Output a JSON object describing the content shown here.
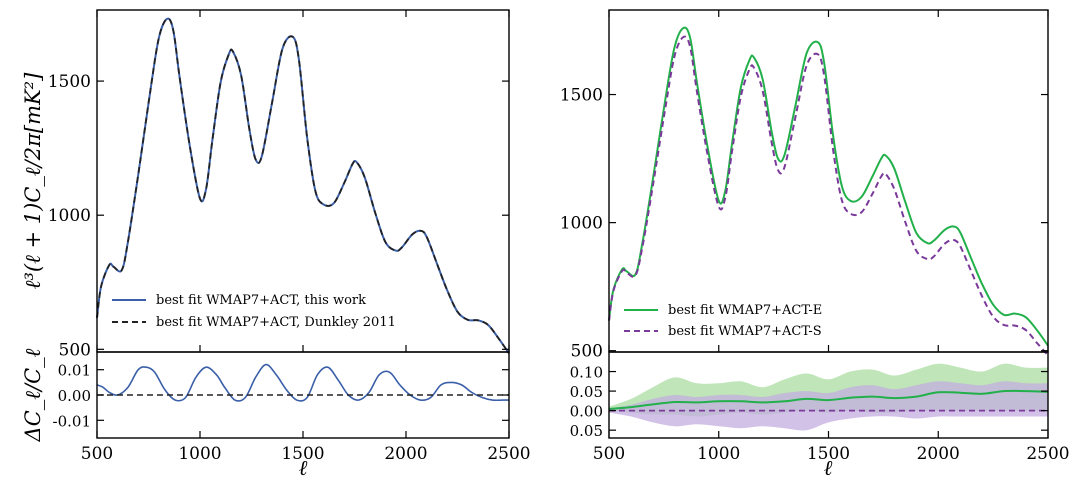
{
  "chart_data": [
    {
      "type": "line",
      "panel": "left",
      "xlabel": "ℓ",
      "ylabel_top": "ℓ³(ℓ + 1)C_ℓ/2π[mK²]",
      "ylabel_bottom": "ΔC_ℓ/C_ℓ",
      "xlim": [
        500,
        2500
      ],
      "xticks": [
        "500",
        "1000",
        "1500",
        "2000",
        "2500"
      ],
      "top": {
        "ylim": [
          490,
          1765
        ],
        "yticks": [
          "500",
          "1000",
          "1500"
        ],
        "legend_position": "lower-left",
        "series": [
          {
            "name": "best fit WMAP7+ACT, this work",
            "style": "solid",
            "color": "#3a5fa8",
            "x": [
              500,
              520,
              560,
              580,
              620,
              650,
              700,
              760,
              800,
              840,
              870,
              900,
              950,
              1000,
              1030,
              1060,
              1100,
              1140,
              1160,
              1200,
              1240,
              1270,
              1300,
              1350,
              1400,
              1450,
              1480,
              1520,
              1560,
              1600,
              1650,
              1700,
              1740,
              1760,
              1800,
              1850,
              1900,
              1950,
              1980,
              2030,
              2070,
              2100,
              2150,
              2200,
              2250,
              2300,
              2350,
              2400,
              2450,
              2500
            ],
            "y": [
              618,
              735,
              815,
              808,
              795,
              900,
              1150,
              1470,
              1660,
              1732,
              1690,
              1520,
              1260,
              1062,
              1100,
              1280,
              1495,
              1600,
              1610,
              1520,
              1320,
              1208,
              1220,
              1420,
              1620,
              1665,
              1580,
              1290,
              1090,
              1040,
              1045,
              1120,
              1190,
              1198,
              1140,
              1010,
              900,
              868,
              880,
              928,
              942,
              920,
              820,
              720,
              640,
              610,
              608,
              590,
              540,
              485
            ]
          },
          {
            "name": "best fit WMAP7+ACT, Dunkley 2011",
            "style": "dashed",
            "color": "#222222",
            "x": [
              500,
              520,
              560,
              580,
              620,
              650,
              700,
              760,
              800,
              840,
              870,
              900,
              950,
              1000,
              1030,
              1060,
              1100,
              1140,
              1160,
              1200,
              1240,
              1270,
              1300,
              1350,
              1400,
              1450,
              1480,
              1520,
              1560,
              1600,
              1650,
              1700,
              1740,
              1760,
              1800,
              1850,
              1900,
              1950,
              1980,
              2030,
              2070,
              2100,
              2150,
              2200,
              2250,
              2300,
              2350,
              2400,
              2450,
              2500
            ],
            "y": [
              618,
              735,
              815,
              808,
              795,
              900,
              1150,
              1470,
              1660,
              1732,
              1690,
              1520,
              1260,
              1062,
              1100,
              1280,
              1495,
              1600,
              1610,
              1520,
              1320,
              1208,
              1220,
              1420,
              1620,
              1665,
              1580,
              1290,
              1090,
              1040,
              1045,
              1120,
              1190,
              1198,
              1140,
              1010,
              900,
              868,
              880,
              928,
              942,
              920,
              820,
              720,
              640,
              610,
              608,
              590,
              540,
              485
            ]
          }
        ]
      },
      "bottom": {
        "ylim": [
          -0.017,
          0.017
        ],
        "yticks": [
          "0.01",
          "0.00",
          "-0.01"
        ],
        "series": [
          {
            "name": "best fit WMAP7+ACT, this work",
            "style": "solid",
            "color": "#3a5fa8",
            "x": [
              500,
              530,
              560,
              600,
              650,
              700,
              740,
              780,
              830,
              880,
              930,
              980,
              1030,
              1080,
              1120,
              1170,
              1220,
              1270,
              1320,
              1370,
              1420,
              1470,
              1520,
              1570,
              1620,
              1670,
              1720,
              1770,
              1820,
              1870,
              1920,
              1970,
              2020,
              2070,
              2120,
              2170,
              2220,
              2270,
              2320,
              2370,
              2420,
              2470,
              2500
            ],
            "y": [
              0.004,
              0.003,
              0.001,
              0.0,
              0.003,
              0.01,
              0.011,
              0.009,
              0.002,
              -0.002,
              -0.001,
              0.007,
              0.011,
              0.008,
              0.003,
              -0.002,
              -0.001,
              0.007,
              0.012,
              0.008,
              0.002,
              -0.002,
              -0.001,
              0.008,
              0.011,
              0.006,
              0.0,
              -0.002,
              0.001,
              0.008,
              0.009,
              0.004,
              0.0,
              -0.002,
              -0.001,
              0.004,
              0.005,
              0.004,
              0.001,
              -0.001,
              -0.002,
              -0.002,
              -0.002
            ]
          },
          {
            "name": "best fit WMAP7+ACT, Dunkley 2011",
            "style": "dashed",
            "color": "#222222",
            "x": [
              500,
              2500
            ],
            "y": [
              0.0,
              0.0
            ]
          }
        ]
      }
    },
    {
      "type": "line",
      "panel": "right",
      "xlabel": "ℓ",
      "xlim": [
        500,
        2500
      ],
      "xticks": [
        "500",
        "1000",
        "1500",
        "2000",
        "2500"
      ],
      "top": {
        "ylim": [
          495,
          1830
        ],
        "yticks": [
          "500",
          "1000",
          "1500"
        ],
        "legend_position": "lower-left",
        "series": [
          {
            "name": "best fit WMAP7+ACT-E",
            "style": "solid",
            "color": "#22b04a",
            "x": [
              500,
              520,
              560,
              580,
              620,
              650,
              700,
              760,
              800,
              840,
              870,
              900,
              950,
              1000,
              1030,
              1060,
              1100,
              1140,
              1160,
              1200,
              1240,
              1270,
              1300,
              1350,
              1400,
              1450,
              1480,
              1520,
              1560,
              1600,
              1650,
              1700,
              1740,
              1760,
              1800,
              1850,
              1900,
              1950,
              1980,
              2030,
              2070,
              2100,
              2150,
              2200,
              2250,
              2300,
              2350,
              2400,
              2450,
              2500
            ],
            "y": [
              620,
              738,
              818,
              810,
              797,
              910,
              1170,
              1500,
              1690,
              1760,
              1720,
              1550,
              1290,
              1085,
              1125,
              1305,
              1525,
              1635,
              1645,
              1560,
              1360,
              1250,
              1265,
              1460,
              1660,
              1705,
              1625,
              1345,
              1145,
              1085,
              1100,
              1180,
              1250,
              1262,
              1210,
              1080,
              960,
              920,
              930,
              972,
              985,
              962,
              860,
              760,
              680,
              640,
              645,
              630,
              580,
              520
            ]
          },
          {
            "name": "best fit WMAP7+ACT-S",
            "style": "dashed",
            "color": "#7a3a9a",
            "x": [
              500,
              520,
              560,
              580,
              620,
              650,
              700,
              760,
              800,
              840,
              870,
              900,
              950,
              1000,
              1030,
              1060,
              1100,
              1140,
              1160,
              1200,
              1240,
              1270,
              1300,
              1350,
              1400,
              1450,
              1480,
              1520,
              1560,
              1600,
              1650,
              1700,
              1740,
              1760,
              1800,
              1850,
              1900,
              1950,
              1980,
              2030,
              2070,
              2100,
              2150,
              2200,
              2250,
              2300,
              2350,
              2400,
              2450,
              2500
            ],
            "y": [
              617,
              733,
              812,
              805,
              793,
              895,
              1145,
              1465,
              1655,
              1725,
              1685,
              1515,
              1260,
              1062,
              1098,
              1275,
              1490,
              1598,
              1605,
              1515,
              1318,
              1205,
              1218,
              1415,
              1612,
              1658,
              1575,
              1290,
              1090,
              1035,
              1040,
              1112,
              1180,
              1190,
              1130,
              1002,
              890,
              858,
              868,
              918,
              932,
              908,
              810,
              712,
              633,
              600,
              598,
              580,
              530,
              482
            ]
          }
        ]
      },
      "bottom": {
        "ylim": [
          -0.07,
          0.15
        ],
        "yticks": [
          "0.10",
          "0.05",
          "0.00",
          "0.05"
        ],
        "band_color_E": "#a9dca0",
        "band_color_S": "#c4aee0",
        "series": [
          {
            "name": "best fit WMAP7+ACT-E",
            "style": "solid",
            "color": "#22b04a",
            "x": [
              500,
              600,
              700,
              800,
              900,
              1000,
              1100,
              1200,
              1300,
              1400,
              1500,
              1600,
              1700,
              1800,
              1900,
              2000,
              2100,
              2200,
              2300,
              2400,
              2500
            ],
            "y": [
              0.004,
              0.009,
              0.016,
              0.022,
              0.021,
              0.024,
              0.024,
              0.021,
              0.024,
              0.03,
              0.027,
              0.033,
              0.036,
              0.032,
              0.036,
              0.047,
              0.046,
              0.043,
              0.05,
              0.05,
              0.048
            ],
            "band_upper": [
              0.01,
              0.03,
              0.06,
              0.085,
              0.07,
              0.07,
              0.075,
              0.06,
              0.08,
              0.095,
              0.08,
              0.1,
              0.105,
              0.09,
              0.105,
              0.12,
              0.11,
              0.1,
              0.12,
              0.11,
              0.11
            ],
            "band_lower": [
              0.0,
              -0.005,
              -0.01,
              -0.01,
              -0.015,
              -0.01,
              -0.005,
              -0.01,
              -0.005,
              0.0,
              -0.005,
              0.0,
              -0.005,
              -0.005,
              0.0,
              0.0,
              0.0,
              0.0,
              0.0,
              0.0,
              0.0
            ]
          },
          {
            "name": "best fit WMAP7+ACT-S",
            "style": "dashed",
            "color": "#7a3a9a",
            "x": [
              500,
              2500
            ],
            "y": [
              0.0,
              0.0
            ],
            "band_x": [
              500,
              600,
              700,
              800,
              900,
              1000,
              1100,
              1200,
              1300,
              1400,
              1500,
              1600,
              1700,
              1800,
              1900,
              2000,
              2100,
              2200,
              2300,
              2400,
              2500
            ],
            "band_upper": [
              0.005,
              0.015,
              0.03,
              0.04,
              0.035,
              0.04,
              0.04,
              0.035,
              0.045,
              0.05,
              0.045,
              0.06,
              0.065,
              0.055,
              0.065,
              0.075,
              0.07,
              0.065,
              0.075,
              0.07,
              0.07
            ],
            "band_lower": [
              -0.005,
              -0.015,
              -0.03,
              -0.04,
              -0.035,
              -0.04,
              -0.045,
              -0.04,
              -0.045,
              -0.05,
              -0.03,
              -0.02,
              -0.015,
              -0.015,
              -0.02,
              -0.015,
              -0.015,
              -0.015,
              -0.015,
              -0.015,
              -0.015
            ]
          }
        ]
      }
    }
  ]
}
